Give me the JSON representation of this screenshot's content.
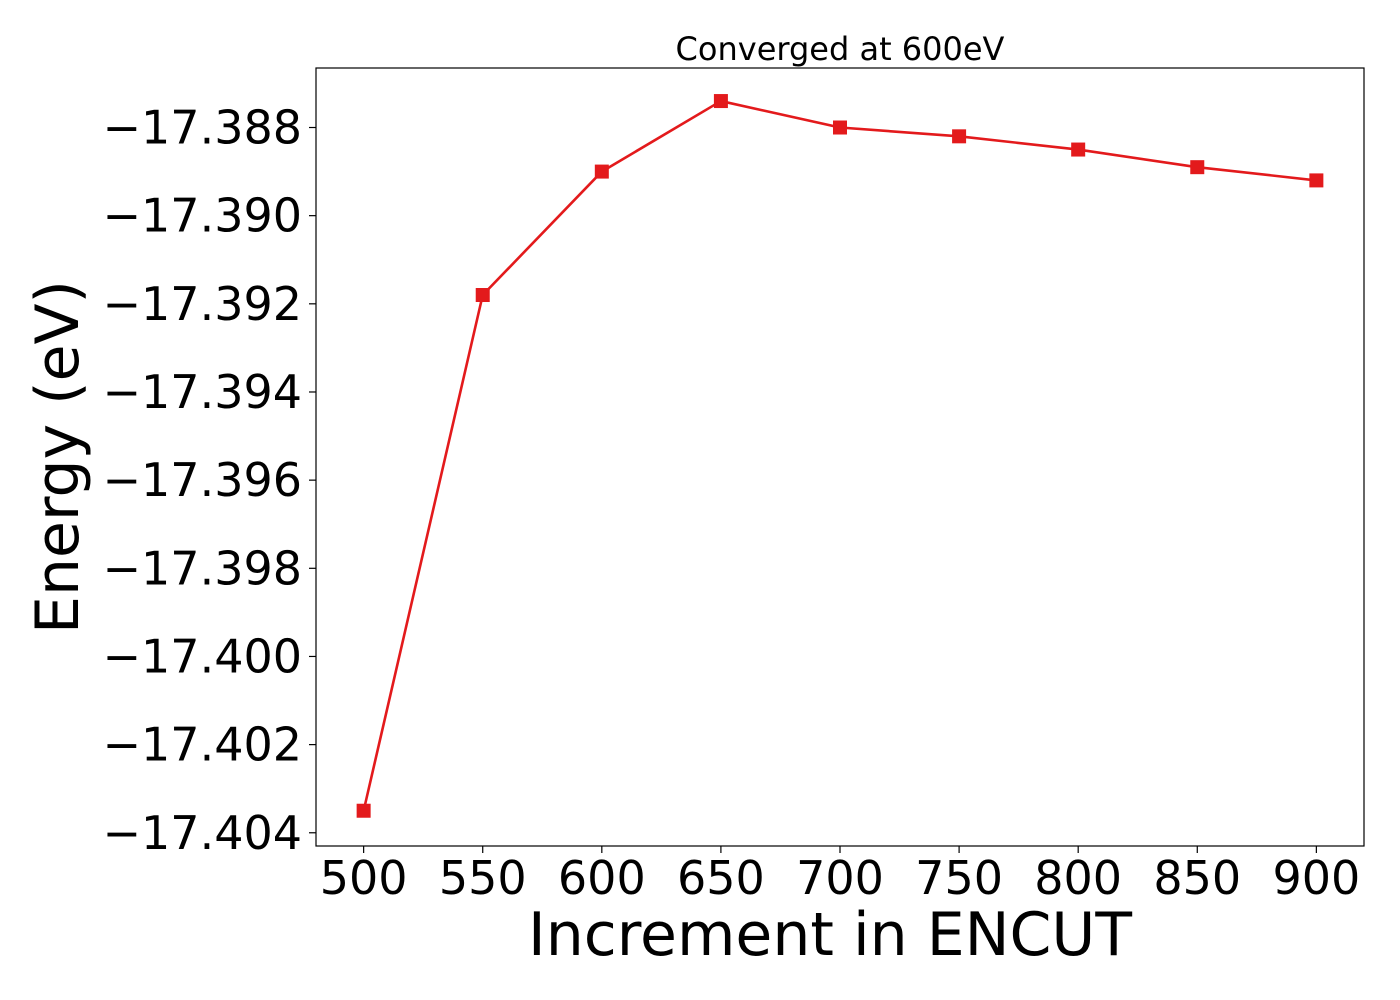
{
  "chart_data": {
    "type": "line",
    "title": "Converged at 600eV",
    "xlabel": "Increment in ENCUT",
    "ylabel": "Energy (eV)",
    "x": [
      500,
      550,
      600,
      650,
      700,
      750,
      800,
      850,
      900
    ],
    "series": [
      {
        "values": [
          -17.4035,
          -17.3918,
          -17.389,
          -17.3874,
          -17.388,
          -17.3882,
          -17.3885,
          -17.3889,
          -17.3892
        ],
        "color": "#e31a1c",
        "marker": "square"
      }
    ],
    "xticks": [
      500,
      550,
      600,
      650,
      700,
      750,
      800,
      850,
      900
    ],
    "xtick_labels": [
      "500",
      "550",
      "600",
      "650",
      "700",
      "750",
      "800",
      "850",
      "900"
    ],
    "yticks": [
      -17.388,
      -17.39,
      -17.392,
      -17.394,
      -17.396,
      -17.398,
      -17.4,
      -17.402,
      -17.404
    ],
    "ytick_labels": [
      "−17.388",
      "−17.390",
      "−17.392",
      "−17.394",
      "−17.396",
      "−17.398",
      "−17.400",
      "−17.402",
      "−17.404"
    ],
    "xlim": [
      480,
      920
    ],
    "ylim": [
      -17.4043,
      -17.38665
    ],
    "grid": false,
    "legend": false
  }
}
